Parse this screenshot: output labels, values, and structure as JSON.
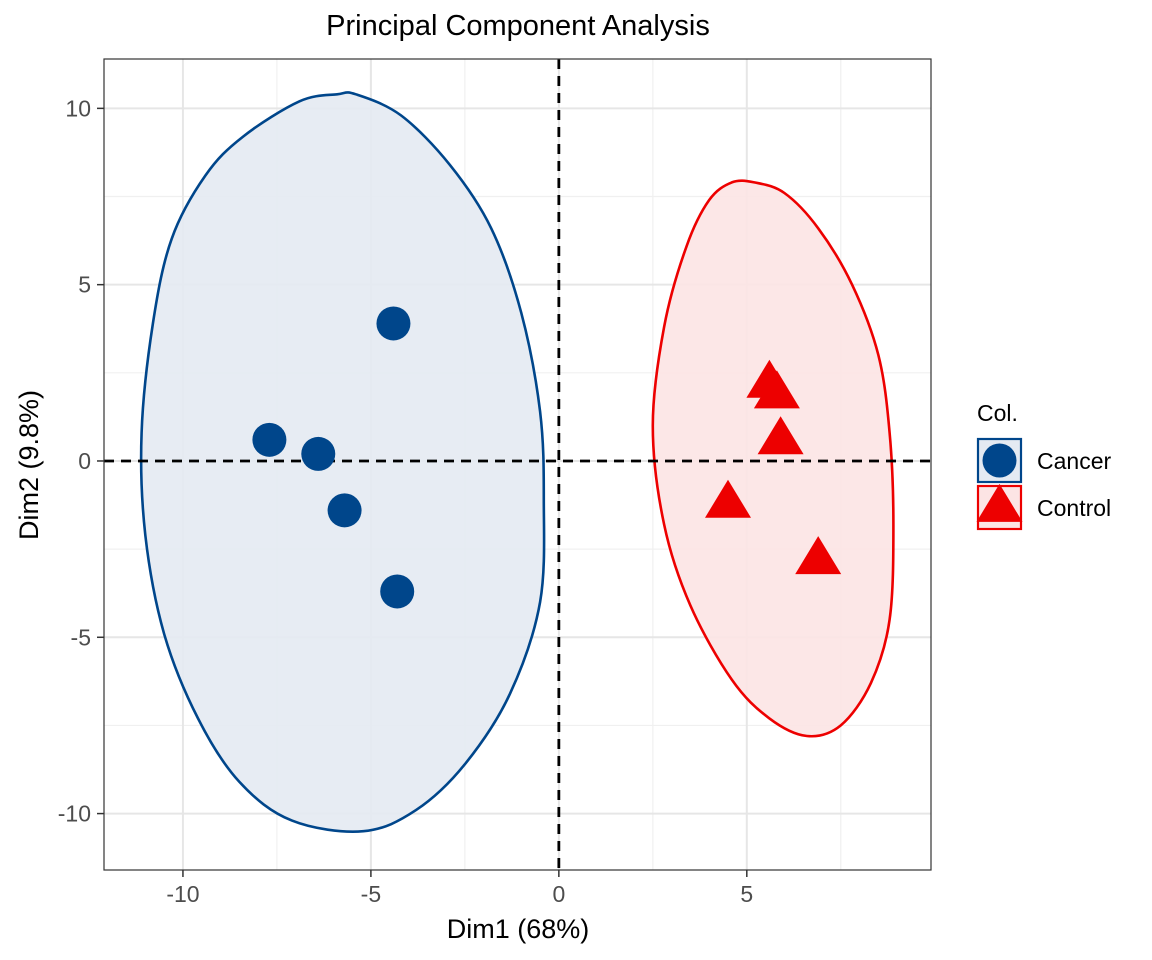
{
  "chart_data": {
    "type": "scatter",
    "title": "Principal Component Analysis",
    "xlabel": "Dim1 (68%)",
    "ylabel": "Dim2 (9.8%)",
    "xlim": [
      -12.1,
      9.9
    ],
    "ylim": [
      -11.6,
      11.4
    ],
    "x_ticks": [
      -10,
      -5,
      0,
      5
    ],
    "y_ticks": [
      -10,
      -5,
      0,
      5,
      10
    ],
    "x_tick_labels": [
      "-10",
      "-5",
      "0",
      "5"
    ],
    "y_tick_labels": [
      "-10",
      "-5",
      "0",
      "5",
      "10"
    ],
    "grid": true,
    "reference_lines": {
      "x": 0,
      "y": 0,
      "style": "dashed"
    },
    "legend": {
      "title": "Col.",
      "position": "right"
    },
    "series": [
      {
        "name": "Cancer",
        "marker": "circle",
        "color": "#00468B",
        "fill": "#E4EAF2",
        "points": [
          {
            "x": -4.4,
            "y": 3.9
          },
          {
            "x": -7.7,
            "y": 0.6
          },
          {
            "x": -6.4,
            "y": 0.2
          },
          {
            "x": -5.7,
            "y": -1.4
          },
          {
            "x": -4.3,
            "y": -3.7
          }
        ],
        "ellipse": [
          [
            -5.9,
            10.4
          ],
          [
            -6.9,
            10.2
          ],
          [
            -8.4,
            9.2
          ],
          [
            -9.4,
            8.1
          ],
          [
            -10.3,
            6.3
          ],
          [
            -10.8,
            3.9
          ],
          [
            -11.1,
            0.8
          ],
          [
            -11.0,
            -2.1
          ],
          [
            -10.5,
            -4.9
          ],
          [
            -9.6,
            -7.3
          ],
          [
            -8.5,
            -9.1
          ],
          [
            -7.1,
            -10.2
          ],
          [
            -5.2,
            -10.5
          ],
          [
            -3.8,
            -9.9
          ],
          [
            -2.5,
            -8.6
          ],
          [
            -1.3,
            -6.6
          ],
          [
            -0.5,
            -4.0
          ],
          [
            -0.4,
            -1.1
          ],
          [
            -0.5,
            1.4
          ],
          [
            -1.0,
            4.2
          ],
          [
            -1.8,
            6.6
          ],
          [
            -2.9,
            8.4
          ],
          [
            -4.2,
            9.8
          ],
          [
            -5.4,
            10.4
          ]
        ]
      },
      {
        "name": "Control",
        "marker": "triangle",
        "color": "#ED0000",
        "fill": "#FCE4E4",
        "points": [
          {
            "x": 5.6,
            "y": 2.2
          },
          {
            "x": 5.8,
            "y": 1.9
          },
          {
            "x": 5.9,
            "y": 0.6
          },
          {
            "x": 4.5,
            "y": -1.2
          },
          {
            "x": 6.9,
            "y": -2.8
          }
        ],
        "ellipse": [
          [
            4.6,
            7.9
          ],
          [
            4.0,
            7.4
          ],
          [
            3.4,
            6.1
          ],
          [
            2.8,
            3.8
          ],
          [
            2.5,
            1.0
          ],
          [
            2.8,
            -1.8
          ],
          [
            3.5,
            -4.1
          ],
          [
            4.6,
            -6.2
          ],
          [
            5.6,
            -7.3
          ],
          [
            6.6,
            -7.8
          ],
          [
            7.5,
            -7.5
          ],
          [
            8.3,
            -6.3
          ],
          [
            8.8,
            -4.5
          ],
          [
            8.9,
            -1.8
          ],
          [
            8.8,
            0.8
          ],
          [
            8.5,
            3.0
          ],
          [
            7.8,
            5.0
          ],
          [
            6.9,
            6.6
          ],
          [
            6.0,
            7.6
          ],
          [
            5.2,
            7.9
          ]
        ]
      }
    ]
  }
}
